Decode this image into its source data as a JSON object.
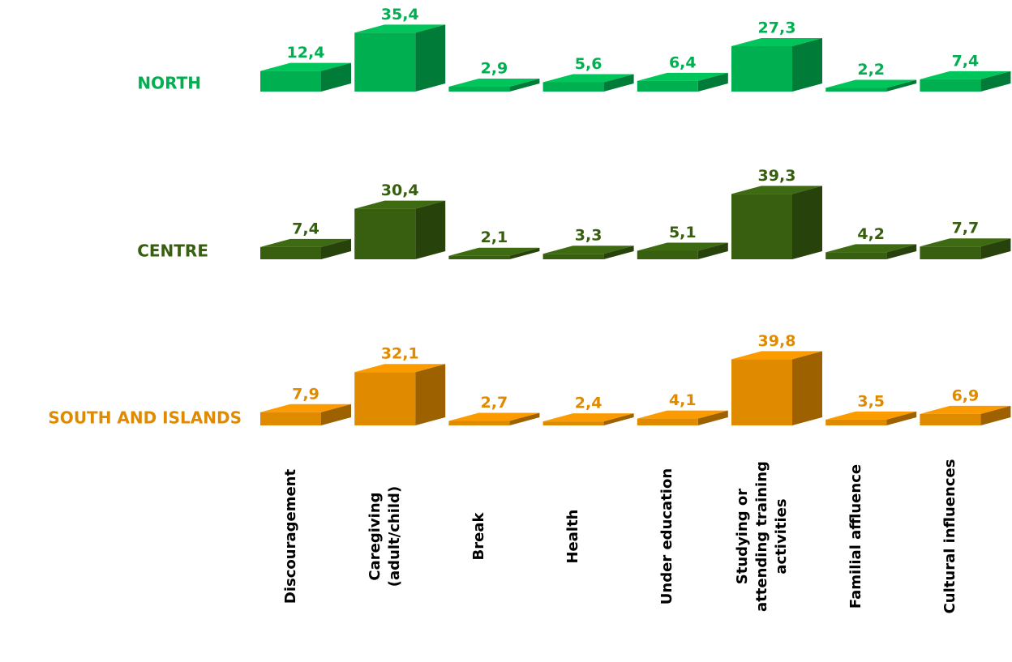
{
  "chart_data": {
    "type": "bar3d-rows",
    "categories": [
      "Discouragement",
      "Caregiving\n(adult/child)",
      "Break",
      "Health",
      "Under education",
      "Studying or\nattending training\nactivities",
      "Familial affluence",
      "Cultural influences"
    ],
    "series": [
      {
        "name": "NORTH",
        "color": "#00b050",
        "values": [
          12.4,
          35.4,
          2.9,
          5.6,
          6.4,
          27.3,
          2.2,
          7.4
        ],
        "value_labels": [
          "12,4",
          "35,4",
          "2,9",
          "5,6",
          "6,4",
          "27,3",
          "2,2",
          "7,4"
        ]
      },
      {
        "name": "CENTRE",
        "color": "#375f0f",
        "values": [
          7.4,
          30.4,
          2.1,
          3.3,
          5.1,
          39.3,
          4.2,
          7.7
        ],
        "value_labels": [
          "7,4",
          "30,4",
          "2,1",
          "3,3",
          "5,1",
          "39,3",
          "4,2",
          "7,7"
        ]
      },
      {
        "name": "SOUTH AND ISLANDS",
        "color": "#e08a00",
        "values": [
          7.9,
          32.1,
          2.7,
          2.4,
          4.1,
          39.8,
          3.5,
          6.9
        ],
        "value_labels": [
          "7,9",
          "32,1",
          "2,7",
          "2,4",
          "4,1",
          "39,8",
          "3,5",
          "6,9"
        ]
      }
    ]
  }
}
